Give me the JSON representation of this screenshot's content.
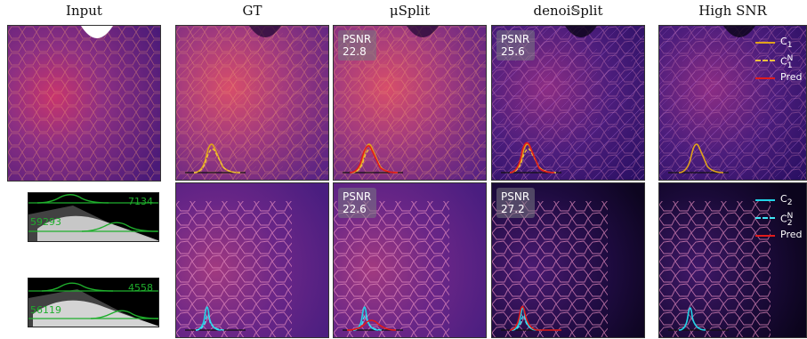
{
  "columns": {
    "input": "Input",
    "gt": "GT",
    "musplit": "μSplit",
    "denoisplit": "denoi𝕊plit",
    "high_snr": "High SNR"
  },
  "psnr": {
    "label": "PSNR",
    "musplit_row1": "22.8",
    "denoisplit_row1": "25.6",
    "musplit_row2": "22.6",
    "denoisplit_row2": "27.2"
  },
  "legend_row1": {
    "c": "C",
    "c_sub": "1",
    "cn": "C",
    "cn_sub": "1",
    "cn_sup": "N",
    "pred": "Pred"
  },
  "legend_row2": {
    "c": "C",
    "c_sub": "2",
    "cn": "C",
    "cn_sub": "2",
    "cn_sup": "N",
    "pred": "Pred"
  },
  "histograms": {
    "top_upper_value": "7134",
    "top_lower_value": "59293",
    "bottom_upper_value": "4558",
    "bottom_lower_value": "56119"
  },
  "colors": {
    "c1_line": "#e0a21b",
    "c1n_dashed": "#f0c040",
    "c2_line": "#21d4e8",
    "c2n_dashed": "#3ee6f5",
    "pred_line": "#e11b1b",
    "hist_green": "#1fae2c"
  }
}
